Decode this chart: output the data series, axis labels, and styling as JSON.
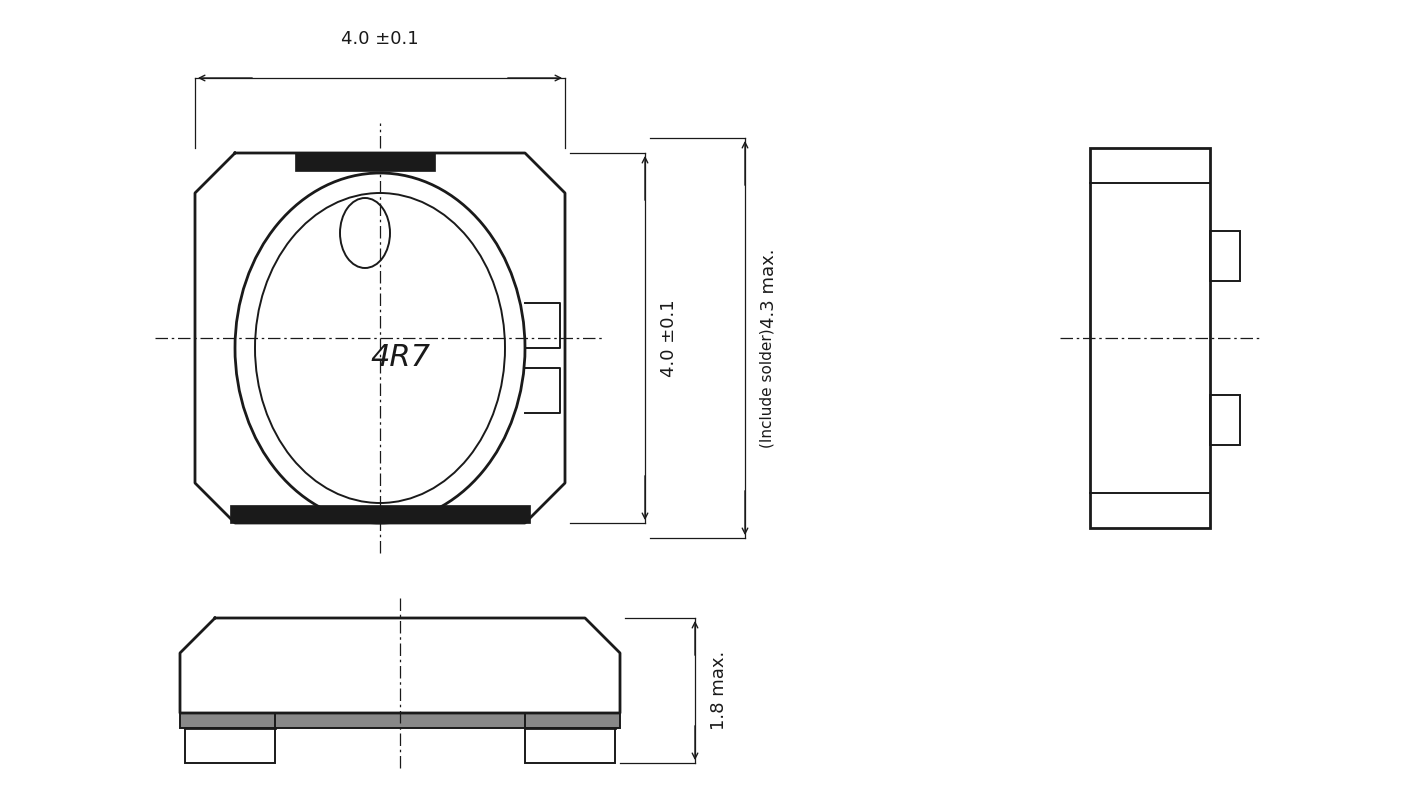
{
  "bg_color": "#ffffff",
  "line_color": "#1a1a1a",
  "lw": 1.4,
  "tlw": 2.0,
  "label_4R7": "4R7",
  "dim_top": "4.0 ±0.1",
  "dim_side_inner": "4.0 ±0.1",
  "dim_side_outer": "4.3 max.",
  "dim_bottom": "1.8 max.",
  "dim_include": "(Include solder)",
  "fs_label": 22,
  "fs_dim": 13
}
